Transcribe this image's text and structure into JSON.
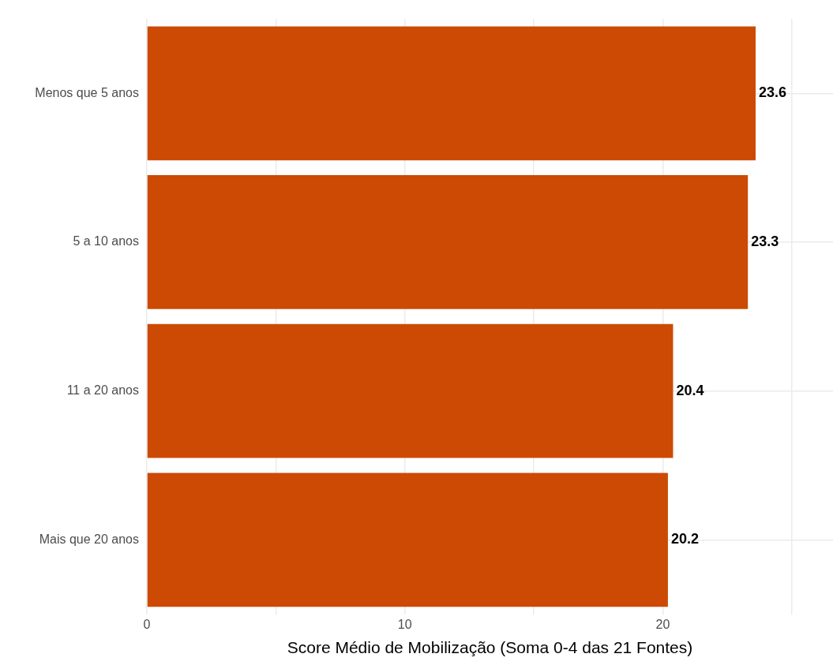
{
  "chart_data": {
    "type": "bar",
    "orientation": "horizontal",
    "xlabel": "Score Médio de Mobilização (Soma 0-4 das 21 Fontes)",
    "categories": [
      "Menos que 5 anos",
      "5 a 10 anos",
      "11 a 20 anos",
      "Mais que 20 anos"
    ],
    "values": [
      23.6,
      23.3,
      20.4,
      20.2
    ],
    "color": "#cc4a04",
    "xlim": [
      0,
      26.6
    ],
    "xticks": [
      0,
      {
        "value": 5,
        "label": null
      },
      10,
      {
        "value": 15,
        "label": null
      },
      20,
      {
        "value": 25,
        "label": null
      }
    ],
    "grid": true,
    "data_labels": true,
    "legend": false
  }
}
